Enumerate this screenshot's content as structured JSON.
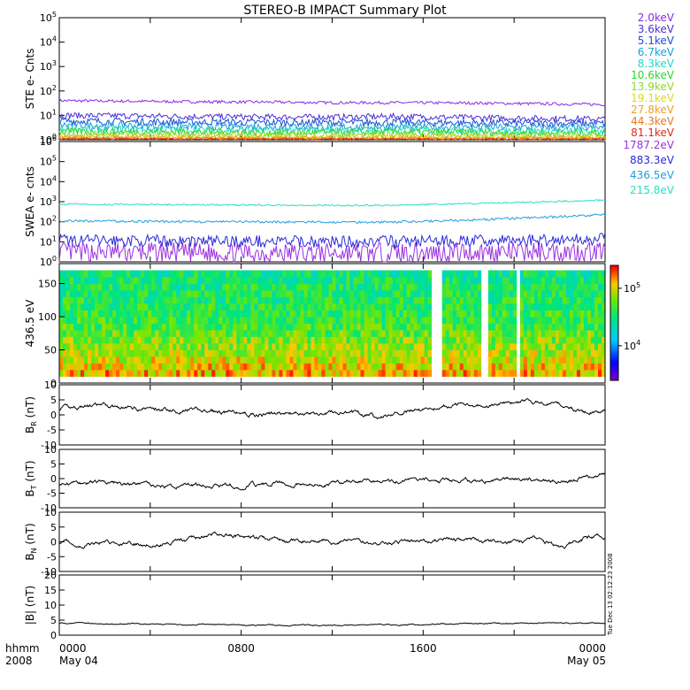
{
  "title": "STEREO-B IMPACT Summary Plot",
  "x_axis": {
    "row1_label": "hhmm",
    "row2_label": "2008",
    "ticks": [
      {
        "hhmm": "0000",
        "date": "May 04",
        "t": 0
      },
      {
        "hhmm": "0800",
        "date": "",
        "t": 8
      },
      {
        "hhmm": "1600",
        "date": "",
        "t": 16
      },
      {
        "hhmm": "0000",
        "date": "May 05",
        "t": 24
      }
    ],
    "range_hours": [
      0,
      24
    ]
  },
  "side_text": "Tue Dec 13 02:12:23 2008",
  "colors": {
    "ste": [
      "#8b2be2",
      "#4b2fd6",
      "#1c4fd6",
      "#1a9fd8",
      "#1fd8c8",
      "#28d828",
      "#8cd828",
      "#d8d828",
      "#f0a020",
      "#e87818",
      "#e02818"
    ],
    "swea": [
      "#9b30e0",
      "#2a2ad8",
      "#1f9ee0",
      "#28e0c0"
    ]
  },
  "chart_data": [
    {
      "type": "line",
      "ylabel": "STE e- Cnts",
      "yscale": "log",
      "ylim": [
        1,
        100000
      ],
      "yticks": [
        {
          "b": "10",
          "e": "0",
          "v": 1
        },
        {
          "b": "10",
          "e": "1",
          "v": 10
        },
        {
          "b": "10",
          "e": "2",
          "v": 100
        },
        {
          "b": "10",
          "e": "3",
          "v": 1000
        },
        {
          "b": "10",
          "e": "4",
          "v": 10000
        },
        {
          "b": "10",
          "e": "5",
          "v": 100000
        }
      ],
      "legend": [
        "2.0keV",
        "3.6keV",
        "5.1keV",
        "6.7keV",
        "8.3keV",
        "10.6keV",
        "13.9keV",
        "19.1keV",
        "27.8keV",
        "44.3keV",
        "81.1keV"
      ],
      "series": [
        {
          "name": "2.0keV",
          "x": [
            0,
            3,
            6,
            9,
            12,
            15,
            18,
            21,
            24
          ],
          "y": [
            40,
            38,
            36,
            35,
            33,
            33,
            32,
            30,
            28
          ]
        },
        {
          "name": "3.6keV",
          "x": [
            0,
            3,
            6,
            9,
            12,
            15,
            18,
            21,
            24
          ],
          "y": [
            10,
            9.5,
            9,
            8.5,
            8.5,
            9,
            8,
            7.5,
            7
          ]
        },
        {
          "name": "5.1keV",
          "x": [
            0,
            3,
            6,
            9,
            12,
            15,
            18,
            21,
            24
          ],
          "y": [
            6,
            5.5,
            5.3,
            5.1,
            5,
            5.2,
            4.9,
            4.7,
            4.6
          ]
        },
        {
          "name": "6.7keV",
          "x": [
            0,
            3,
            6,
            9,
            12,
            15,
            18,
            21,
            24
          ],
          "y": [
            4,
            3.8,
            3.6,
            3.5,
            3.4,
            3.5,
            3.3,
            3.2,
            3.1
          ]
        },
        {
          "name": "8.3keV",
          "x": [
            0,
            3,
            6,
            9,
            12,
            15,
            18,
            21,
            24
          ],
          "y": [
            2.8,
            2.7,
            2.6,
            2.5,
            2.5,
            2.6,
            2.4,
            2.3,
            2.3
          ]
        },
        {
          "name": "10.6keV",
          "x": [
            0,
            3,
            6,
            9,
            12,
            15,
            18,
            21,
            24
          ],
          "y": [
            2.2,
            2.1,
            2.1,
            2,
            2,
            2.1,
            2,
            1.9,
            1.9
          ]
        },
        {
          "name": "13.9keV",
          "x": [
            0,
            3,
            6,
            9,
            12,
            15,
            18,
            21,
            24
          ],
          "y": [
            1.7,
            1.7,
            1.6,
            1.6,
            1.6,
            1.6,
            1.6,
            1.5,
            1.5
          ]
        },
        {
          "name": "19.1keV",
          "x": [
            0,
            3,
            6,
            9,
            12,
            15,
            18,
            21,
            24
          ],
          "y": [
            1.4,
            1.4,
            1.4,
            1.3,
            1.3,
            1.4,
            1.3,
            1.3,
            1.3
          ]
        },
        {
          "name": "27.8keV",
          "x": [
            0,
            3,
            6,
            9,
            12,
            15,
            18,
            21,
            24
          ],
          "y": [
            1.25,
            1.25,
            1.2,
            1.2,
            1.2,
            1.2,
            1.2,
            1.2,
            1.2
          ]
        },
        {
          "name": "44.3keV",
          "x": [
            0,
            3,
            6,
            9,
            12,
            15,
            18,
            21,
            24
          ],
          "y": [
            1.15,
            1.15,
            1.12,
            1.12,
            1.12,
            1.12,
            1.1,
            1.1,
            1.1
          ]
        },
        {
          "name": "81.1keV",
          "x": [
            0,
            3,
            6,
            9,
            12,
            15,
            18,
            21,
            24
          ],
          "y": [
            1.08,
            1.08,
            1.06,
            1.06,
            1.06,
            1.06,
            1.05,
            1.05,
            1.05
          ]
        }
      ]
    },
    {
      "type": "line",
      "ylabel": "SWEA e- cnts",
      "yscale": "log",
      "ylim": [
        1,
        1000000
      ],
      "yticks": [
        {
          "b": "10",
          "e": "0",
          "v": 1
        },
        {
          "b": "10",
          "e": "1",
          "v": 10
        },
        {
          "b": "10",
          "e": "2",
          "v": 100
        },
        {
          "b": "10",
          "e": "3",
          "v": 1000
        },
        {
          "b": "10",
          "e": "4",
          "v": 10000
        },
        {
          "b": "10",
          "e": "5",
          "v": 100000
        },
        {
          "b": "10",
          "e": "6",
          "v": 1000000
        }
      ],
      "legend": [
        "1787.2eV",
        "883.3eV",
        "436.5eV",
        "215.8eV"
      ],
      "series": [
        {
          "name": "1787.2eV",
          "x": [
            0,
            3,
            6,
            9,
            12,
            15,
            18,
            21,
            24
          ],
          "y": [
            3,
            3,
            2.8,
            2.8,
            2.7,
            2.8,
            3,
            3.2,
            3.5
          ]
        },
        {
          "name": "883.3eV",
          "x": [
            0,
            3,
            6,
            9,
            12,
            15,
            18,
            21,
            24
          ],
          "y": [
            12,
            11,
            11,
            10.5,
            10,
            10.5,
            11,
            12,
            14
          ]
        },
        {
          "name": "436.5eV",
          "x": [
            0,
            3,
            6,
            9,
            12,
            15,
            18,
            21,
            24
          ],
          "y": [
            110,
            105,
            100,
            98,
            95,
            98,
            120,
            160,
            220
          ]
        },
        {
          "name": "215.8eV",
          "x": [
            0,
            3,
            6,
            9,
            12,
            15,
            18,
            21,
            24
          ],
          "y": [
            750,
            720,
            700,
            680,
            650,
            680,
            800,
            950,
            1200
          ]
        }
      ]
    },
    {
      "type": "heatmap",
      "ylabel": "436.5 eV",
      "ylim": [
        0,
        180
      ],
      "yticks": [
        0,
        50,
        100,
        150
      ],
      "y_extent": [
        10,
        170
      ],
      "colorbar": {
        "scale": "log",
        "range": [
          2500,
          250000
        ],
        "ticks": [
          {
            "b": "10",
            "e": "4",
            "v": 10000
          },
          {
            "b": "10",
            "e": "5",
            "v": 100000
          }
        ]
      },
      "gaps_hours": [
        [
          16.3,
          16.8
        ],
        [
          18.5,
          18.8
        ],
        [
          20.1,
          20.3
        ]
      ],
      "z_profile": {
        "pitch": [
          10,
          40,
          90,
          140,
          170
        ],
        "value": [
          140000,
          85000,
          45000,
          35000,
          30000
        ]
      }
    },
    {
      "type": "line",
      "ylabel": "BR (nT)",
      "lab": "B",
      "sub": "R",
      "ylim": [
        -10,
        10
      ],
      "yticks": [
        -10,
        -5,
        0,
        5,
        10
      ],
      "x": [
        0,
        1,
        2,
        3,
        4,
        5,
        6,
        7,
        8,
        9,
        10,
        11,
        12,
        13,
        14,
        15,
        16,
        17,
        18,
        19,
        20,
        21,
        22,
        23,
        24
      ],
      "y": [
        2,
        2.8,
        3,
        2.5,
        2.2,
        1.8,
        1.5,
        0.8,
        0.5,
        0,
        0.5,
        0,
        1,
        0.5,
        -0.5,
        1,
        2,
        3,
        4,
        3,
        4,
        4.2,
        3.5,
        1,
        1.5
      ]
    },
    {
      "type": "line",
      "ylabel": "BT (nT)",
      "lab": "B",
      "sub": "T",
      "ylim": [
        -10,
        10
      ],
      "yticks": [
        -10,
        -5,
        0,
        5,
        10
      ],
      "x": [
        0,
        1,
        2,
        3,
        4,
        5,
        6,
        7,
        8,
        9,
        10,
        11,
        12,
        13,
        14,
        15,
        16,
        17,
        18,
        19,
        20,
        21,
        22,
        23,
        24
      ],
      "y": [
        -2,
        -1.5,
        -1,
        -2,
        -2.5,
        -3,
        -2,
        -2.5,
        -3,
        -2,
        -1.5,
        -2,
        -2,
        -1,
        -0.5,
        -1,
        0,
        -1,
        -1,
        -0.5,
        0,
        -0.5,
        -1,
        0,
        2
      ]
    },
    {
      "type": "line",
      "ylabel": "BN (nT)",
      "lab": "B",
      "sub": "N",
      "ylim": [
        -10,
        10
      ],
      "yticks": [
        -10,
        -5,
        0,
        5,
        10
      ],
      "x": [
        0,
        1,
        2,
        3,
        4,
        5,
        6,
        7,
        8,
        9,
        10,
        11,
        12,
        13,
        14,
        15,
        16,
        17,
        18,
        19,
        20,
        21,
        22,
        23,
        24
      ],
      "y": [
        0,
        -1,
        0,
        -1,
        -0.5,
        0,
        1,
        2.5,
        2,
        1,
        0,
        1,
        0,
        1,
        -1,
        0,
        0,
        1,
        1,
        0,
        0,
        1,
        -2,
        1,
        2
      ]
    },
    {
      "type": "line",
      "ylabel": "|B| (nT)",
      "lab": "|B|",
      "sub": "",
      "ylim": [
        0,
        20
      ],
      "yticks": [
        0,
        5,
        10,
        15,
        20
      ],
      "x": [
        0,
        2,
        4,
        6,
        8,
        10,
        12,
        14,
        16,
        18,
        20,
        22,
        24
      ],
      "y": [
        4,
        3.8,
        3.6,
        3.5,
        3.4,
        3.3,
        3.3,
        3.4,
        3.6,
        3.8,
        3.9,
        4,
        4
      ]
    }
  ]
}
